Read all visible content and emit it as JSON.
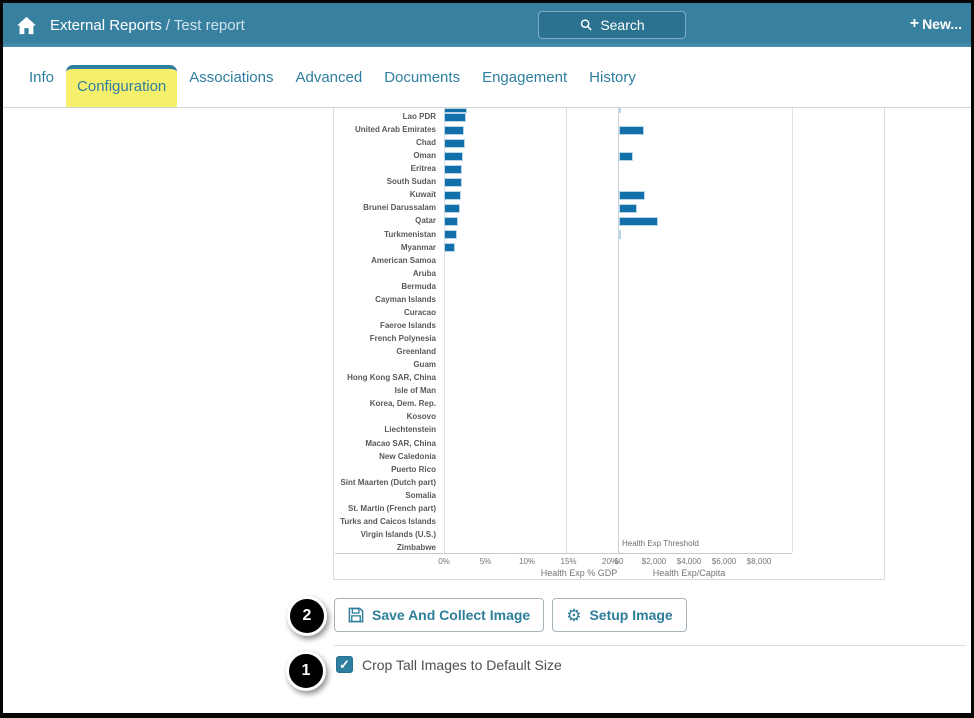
{
  "colors": {
    "header_teal": "#38809F",
    "search_button_bg": "#2B7190",
    "accent_blue": "#2E7EA0",
    "tab_highlight_yellow": "#F6EF6B",
    "bar_blue": "#1170AA",
    "annotation_black": "#000000"
  },
  "icons": {
    "home-icon": "white house glyph",
    "magnifier-icon": "magnifying glass",
    "plus-icon": "+",
    "page-icon": "document page with lines",
    "floppy-icon": "floppy disk",
    "gear-icon": "⚙",
    "checkmark-icon": "✓"
  },
  "header": {
    "breadcrumb": {
      "section": "External Reports",
      "separator": "/",
      "page": "Test report"
    },
    "search_button": "Search",
    "new_button": "New..."
  },
  "tabbar": {
    "tabs": [
      {
        "label": "Info",
        "active": false
      },
      {
        "label": "Configuration",
        "active": true
      },
      {
        "label": "Associations",
        "active": false
      },
      {
        "label": "Advanced",
        "active": false
      },
      {
        "label": "Documents",
        "active": false
      },
      {
        "label": "Engagement",
        "active": false
      },
      {
        "label": "History",
        "active": false
      }
    ]
  },
  "chart_data": {
    "type": "bar",
    "orientation": "horizontal",
    "note": "Chart image is cropped at top; a partial unlabeled row is visible above Lao PDR",
    "panels": [
      {
        "xlabel": "Health Exp % GDP",
        "tick_labels": [
          "0%",
          "5%",
          "10%",
          "15%",
          "20%"
        ],
        "tick_values": [
          0,
          5,
          10,
          15,
          20
        ],
        "xlim": [
          0,
          20
        ]
      },
      {
        "xlabel": "Health Exp/Capita",
        "tick_labels": [
          "$0",
          "$2,000",
          "$4,000",
          "$6,000",
          "$8,000"
        ],
        "tick_values": [
          0,
          2000,
          4000,
          6000,
          8000
        ],
        "xlim": [
          0,
          9900
        ],
        "threshold_label": "Health Exp Threshold"
      }
    ],
    "categories": [
      "Lao PDR",
      "United Arab Emirates",
      "Chad",
      "Oman",
      "Eritrea",
      "South Sudan",
      "Kuwait",
      "Brunei Darussalam",
      "Qatar",
      "Turkmenistan",
      "Myanmar",
      "American Samoa",
      "Aruba",
      "Bermuda",
      "Cayman Islands",
      "Curacao",
      "Faeroe Islands",
      "French Polynesia",
      "Greenland",
      "Guam",
      "Hong Kong SAR, China",
      "Isle of Man",
      "Korea, Dem. Rep.",
      "Kosovo",
      "Liechtenstein",
      "Macao SAR, China",
      "New Caledonia",
      "Puerto Rico",
      "Sint Maarten (Dutch part)",
      "Somalia",
      "St. Martin (French part)",
      "Turks and Caicos Islands",
      "Virgin Islands (U.S.)",
      "Zimbabwe"
    ],
    "series": [
      {
        "name": "Health Exp % GDP",
        "values": [
          2.6,
          2.4,
          2.5,
          2.3,
          2.2,
          2.2,
          2.1,
          1.9,
          1.7,
          1.6,
          1.3,
          0,
          0,
          0,
          0,
          0,
          0,
          0,
          0,
          0,
          0,
          0,
          0,
          0,
          0,
          0,
          0,
          0,
          0,
          0,
          0,
          0,
          0,
          0
        ]
      },
      {
        "name": "Health Exp/Capita",
        "values": [
          0,
          1450,
          0,
          790,
          0,
          0,
          1500,
          1030,
          2240,
          90,
          0,
          0,
          0,
          0,
          0,
          0,
          0,
          0,
          0,
          0,
          0,
          0,
          0,
          0,
          0,
          0,
          0,
          0,
          0,
          0,
          0,
          0,
          0,
          0
        ]
      }
    ],
    "partial_top_row": {
      "gdp": 2.8,
      "capita": 110
    }
  },
  "actions": {
    "save_button": "Save And Collect Image",
    "setup_button": "Setup Image"
  },
  "options": {
    "crop_checkbox": {
      "label": "Crop Tall Images to Default Size",
      "checked": true
    }
  },
  "annotations": {
    "step1": "1",
    "step2": "2"
  }
}
